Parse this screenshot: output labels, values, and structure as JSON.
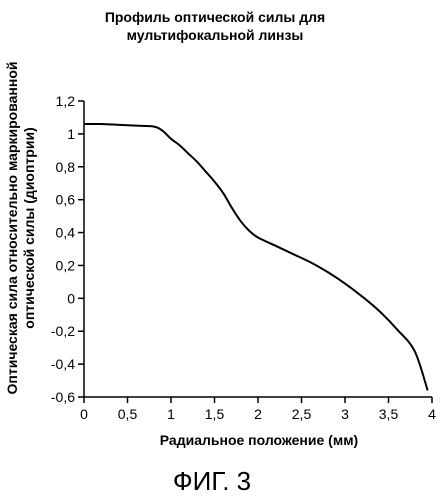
{
  "chart_data": {
    "type": "line",
    "title_lines": [
      "Профиль оптической силы для",
      "мультифокальной линзы"
    ],
    "xlabel": "Радиальное положение (мм)",
    "ylabel_lines": [
      "Оптическая сила относительно маркированной",
      "оптической силы (диоптрии)"
    ],
    "xlim": [
      0,
      4
    ],
    "ylim": [
      -0.6,
      1.2
    ],
    "x_ticks": [
      0,
      0.5,
      1,
      1.5,
      2,
      2.5,
      3,
      3.5,
      4
    ],
    "x_tick_labels": [
      "0",
      "0,5",
      "1",
      "1,5",
      "2",
      "2,5",
      "3",
      "3,5",
      "4"
    ],
    "y_ticks": [
      1.2,
      1,
      0.8,
      0.6,
      0.4,
      0.2,
      0,
      -0.2,
      -0.4,
      -0.6
    ],
    "y_tick_labels": [
      "1,2",
      "1",
      "0,8",
      "0,6",
      "0,4",
      "0,2",
      "0",
      "-0,2",
      "-0,4",
      "-0,6"
    ],
    "grid": false,
    "series": [
      {
        "x": [
          0,
          0.2,
          0.4,
          0.6,
          0.8,
          0.9,
          1.0,
          1.1,
          1.2,
          1.3,
          1.4,
          1.5,
          1.6,
          1.7,
          1.8,
          1.9,
          2.0,
          2.2,
          2.4,
          2.6,
          2.8,
          3.0,
          3.2,
          3.4,
          3.6,
          3.8,
          3.95
        ],
        "y": [
          1.06,
          1.06,
          1.055,
          1.05,
          1.045,
          1.02,
          0.97,
          0.93,
          0.88,
          0.83,
          0.77,
          0.71,
          0.64,
          0.55,
          0.47,
          0.41,
          0.37,
          0.32,
          0.27,
          0.22,
          0.16,
          0.09,
          0.01,
          -0.08,
          -0.19,
          -0.32,
          -0.56
        ]
      }
    ]
  },
  "figure_caption": "ФИГ. 3",
  "colors": {
    "line": "#000000",
    "axis": "#000000"
  }
}
